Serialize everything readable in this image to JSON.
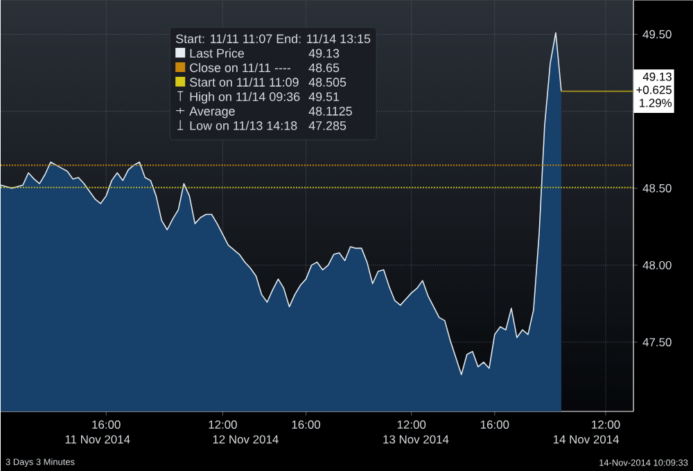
{
  "chart_data": {
    "type": "area",
    "legend_title": "Start: 11/11 11:07 End: 11/14 13:15",
    "legend": "top",
    "grid": true,
    "ylim": [
      47.05,
      49.72
    ],
    "yticks": [
      {
        "value": 47.5,
        "label": "47.50"
      },
      {
        "value": 48.0,
        "label": "48.00"
      },
      {
        "value": 48.5,
        "label": "48.50"
      },
      {
        "value": 49.0,
        "label": null
      },
      {
        "value": 49.5,
        "label": "49.50"
      }
    ],
    "categories": [
      null,
      null,
      null,
      null,
      null,
      null,
      null,
      null,
      null,
      null,
      null,
      null,
      null,
      null,
      null,
      null,
      null,
      null,
      null,
      "16:00",
      null,
      null,
      null,
      null,
      null,
      null,
      null,
      null,
      null,
      null,
      null,
      null,
      null,
      null,
      null,
      null,
      null,
      null,
      null,
      null,
      "12:00",
      null,
      null,
      null,
      null,
      null,
      null,
      null,
      null,
      null,
      null,
      null,
      null,
      null,
      null,
      "16:00",
      null,
      null,
      null,
      null,
      null,
      null,
      null,
      null,
      null,
      null,
      null,
      null,
      null,
      null,
      null,
      null,
      null,
      null,
      "12:00",
      null,
      null,
      null,
      null,
      null,
      null,
      null,
      null,
      null,
      null,
      null,
      null,
      null,
      null,
      "16:00",
      null,
      null,
      null,
      null,
      null,
      null,
      null,
      null,
      null,
      null,
      null,
      null,
      null,
      null,
      null,
      null,
      null,
      null,
      null,
      "12:00",
      null,
      null,
      null,
      null,
      null
    ],
    "series": [
      {
        "name": "Last Price",
        "color": "#e6ecf0",
        "values": [
          48.52,
          48.51,
          48.5,
          48.51,
          48.52,
          48.6,
          48.56,
          48.53,
          48.59,
          48.67,
          48.65,
          48.63,
          48.61,
          48.56,
          48.57,
          48.53,
          48.48,
          48.43,
          48.4,
          48.45,
          48.55,
          48.6,
          48.55,
          48.62,
          48.65,
          48.67,
          48.57,
          48.55,
          48.45,
          48.29,
          48.23,
          48.3,
          48.36,
          48.53,
          48.45,
          48.27,
          48.31,
          48.33,
          48.33,
          48.27,
          48.2,
          48.13,
          48.1,
          48.07,
          48.02,
          47.98,
          47.93,
          47.81,
          47.76,
          47.84,
          47.91,
          47.85,
          47.73,
          47.81,
          47.87,
          47.91,
          48.0,
          48.02,
          47.97,
          48.0,
          48.07,
          48.08,
          48.03,
          48.12,
          48.11,
          48.11,
          48.02,
          47.88,
          47.96,
          47.97,
          47.86,
          47.77,
          47.74,
          47.78,
          47.82,
          47.85,
          47.9,
          47.8,
          47.73,
          47.66,
          47.64,
          47.51,
          47.4,
          47.29,
          47.42,
          47.44,
          47.34,
          47.37,
          47.33,
          47.55,
          47.6,
          47.58,
          47.72,
          47.53,
          47.58,
          47.55,
          47.71,
          48.2,
          48.91,
          49.31,
          49.51,
          49.13,
          null,
          null,
          null,
          null,
          null,
          null,
          null,
          null,
          null,
          null,
          null,
          null,
          null
        ]
      }
    ],
    "ref_lines": [
      {
        "axis": "y",
        "value": 48.65,
        "color": "#c8860a",
        "line_style": "dotted"
      },
      {
        "axis": "y",
        "value": 48.505,
        "color": "#d8c81a",
        "line_style": "dotted"
      },
      {
        "axis": "y",
        "value": 49.13,
        "color": "#9a8a1a",
        "line_style": "solid"
      }
    ],
    "annotations": [
      "49.13",
      "Close on 11/11 ----",
      "48.65",
      "Start on 11/11 11:09",
      "48.505",
      "High on 11/14 09:36",
      "49.51",
      "Average",
      "48.1125",
      "Low on 11/13 14:18",
      "47.285",
      "49.13",
      "+0.625",
      "1.29%",
      "3 Days 3 Minutes",
      "14-Nov-2014 10:09:33",
      "11 Nov 2014",
      "12 Nov 2014",
      "13 Nov 2014",
      "14 Nov 2014"
    ]
  }
}
